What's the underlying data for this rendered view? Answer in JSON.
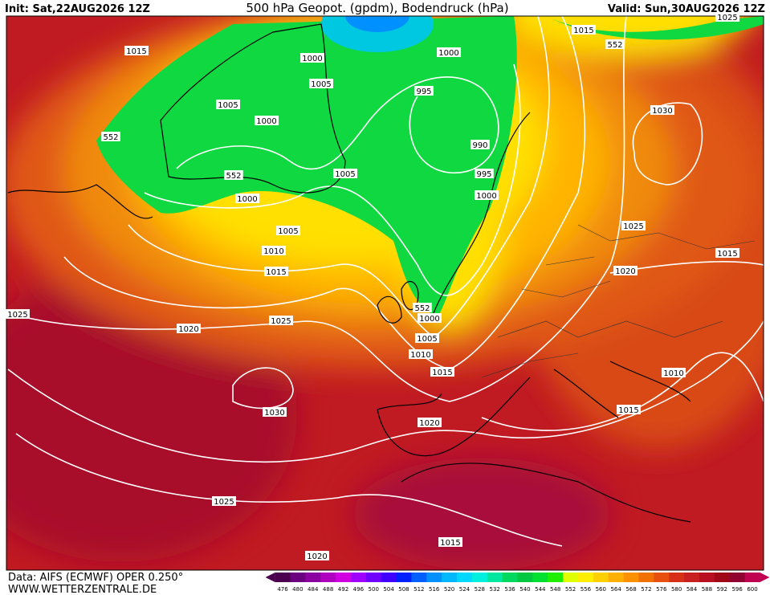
{
  "header": {
    "init": "Init: Sat,22AUG2026 12Z",
    "title": "500 hPa Geopot. (gpdm), Bodendruck (hPa)",
    "valid": "Valid: Sun,30AUG2026 12Z"
  },
  "isobar_labels": [
    1015,
    1000,
    1000,
    1015,
    552,
    1025,
    1005,
    995,
    1005,
    1000,
    1030,
    552,
    990,
    1005,
    995,
    552,
    1000,
    1000,
    1025,
    1005,
    1010,
    1015,
    1015,
    1020,
    552,
    1025,
    1000,
    1025,
    1020,
    1005,
    1010,
    1015,
    1010,
    1030,
    1015,
    1020,
    1025,
    1015,
    1020
  ],
  "colorbar": {
    "labels": [
      476,
      480,
      484,
      488,
      492,
      496,
      500,
      504,
      508,
      512,
      516,
      520,
      524,
      528,
      532,
      536,
      540,
      544,
      548,
      552,
      556,
      560,
      564,
      568,
      572,
      576,
      580,
      584,
      588,
      592,
      596,
      600
    ],
    "colors": [
      "#4b0050",
      "#6a0080",
      "#8a00a0",
      "#b000c0",
      "#d000e0",
      "#a000ff",
      "#7000ff",
      "#4000ff",
      "#0020ff",
      "#0060ff",
      "#0090ff",
      "#00b8ff",
      "#00d8ff",
      "#00f0e0",
      "#00e8a0",
      "#00d860",
      "#00c840",
      "#00e030",
      "#20f000",
      "#e0ff00",
      "#ffee00",
      "#ffd000",
      "#ffb000",
      "#ff9000",
      "#f07000",
      "#e85010",
      "#d83018",
      "#c82020",
      "#b81020",
      "#a00818",
      "#900030",
      "#c00050"
    ]
  },
  "footer": {
    "data": "Data: AIFS (ECMWF) OPER 0.250°",
    "site": "WWW.WETTERZENTRALE.DE"
  }
}
